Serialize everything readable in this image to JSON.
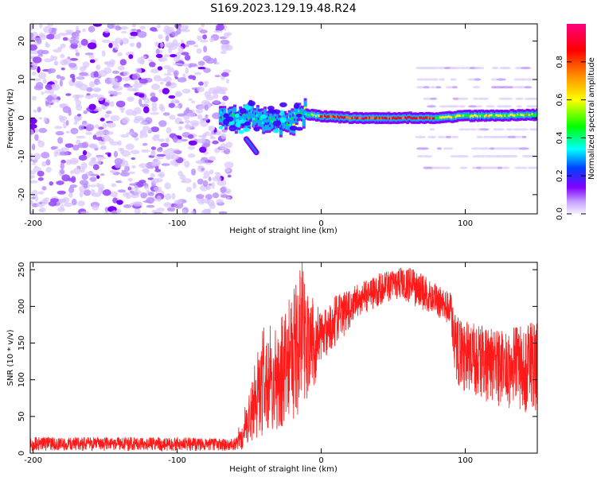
{
  "title": "S169.2023.129.19.48.R24",
  "chart_data": [
    {
      "type": "heatmap",
      "xlabel": "Height of straight line (km)",
      "ylabel": "Frequency (Hz)",
      "xlim": [
        -202,
        150
      ],
      "ylim": [
        -25,
        24.5
      ],
      "x_ticks": [
        -200,
        -100,
        0,
        100
      ],
      "y_ticks": [
        -20,
        -10,
        0,
        10,
        20
      ],
      "colorbar": {
        "label": "Normalized spectral amplitude",
        "range": [
          0,
          1
        ],
        "ticks": [
          0.0,
          0.2,
          0.4,
          0.6,
          0.8
        ],
        "tick_labels": [
          "0.0",
          "0.2",
          "0.4",
          "0.6",
          "0.8"
        ],
        "colors": [
          "#f5f0ff",
          "#8000ff",
          "#0040ff",
          "#00ffff",
          "#00ff00",
          "#ffff00",
          "#ff8000",
          "#ff0000",
          "#ff0080"
        ]
      },
      "features": {
        "noise_region_x": [
          -202,
          -67
        ],
        "main_ridge": [
          [
            -70,
            0.5
          ],
          [
            -60,
            0.0
          ],
          [
            -50,
            0.5
          ],
          [
            -40,
            -1.0
          ],
          [
            -30,
            -1.5
          ],
          [
            -20,
            -1.0
          ],
          [
            -15,
            1.5
          ],
          [
            -10,
            1.0
          ],
          [
            0,
            0.5
          ],
          [
            20,
            0.0
          ],
          [
            40,
            0.0
          ],
          [
            80,
            0.0
          ],
          [
            100,
            0.5
          ],
          [
            150,
            0.8
          ]
        ],
        "side_streak": [
          [
            -52,
            -5.5
          ],
          [
            -45,
            -9.0
          ]
        ],
        "harmonic_lines_y": [
          -13,
          -10,
          -8,
          -5,
          -3,
          3,
          5,
          8,
          10,
          13
        ],
        "harmonic_region_x": [
          80,
          150
        ]
      }
    },
    {
      "type": "line",
      "xlabel": "Height of straight line (km)",
      "ylabel": "SNR (10 * v/v)",
      "xlim": [
        -202,
        150
      ],
      "ylim": [
        0,
        260
      ],
      "x_ticks": [
        -200,
        -100,
        0,
        100
      ],
      "y_ticks": [
        0,
        50,
        100,
        150,
        200,
        250
      ],
      "color": "#ff1a1a",
      "envelope": {
        "x": [
          -202,
          -150,
          -100,
          -70,
          -60,
          -55,
          -50,
          -45,
          -40,
          -35,
          -30,
          -25,
          -20,
          -15,
          -10,
          -5,
          0,
          10,
          20,
          30,
          40,
          50,
          60,
          70,
          80,
          85,
          90,
          92,
          100,
          110,
          120,
          130,
          140,
          150
        ],
        "low": [
          3,
          3,
          3,
          3,
          3,
          5,
          15,
          20,
          25,
          30,
          30,
          40,
          45,
          55,
          70,
          90,
          120,
          140,
          170,
          190,
          200,
          210,
          205,
          195,
          185,
          180,
          175,
          95,
          80,
          75,
          65,
          60,
          55,
          55
        ],
        "high": [
          22,
          22,
          22,
          20,
          20,
          35,
          80,
          120,
          160,
          150,
          160,
          190,
          210,
          250,
          230,
          200,
          195,
          215,
          225,
          235,
          245,
          250,
          255,
          245,
          230,
          225,
          220,
          190,
          180,
          175,
          170,
          170,
          175,
          180
        ]
      }
    }
  ]
}
